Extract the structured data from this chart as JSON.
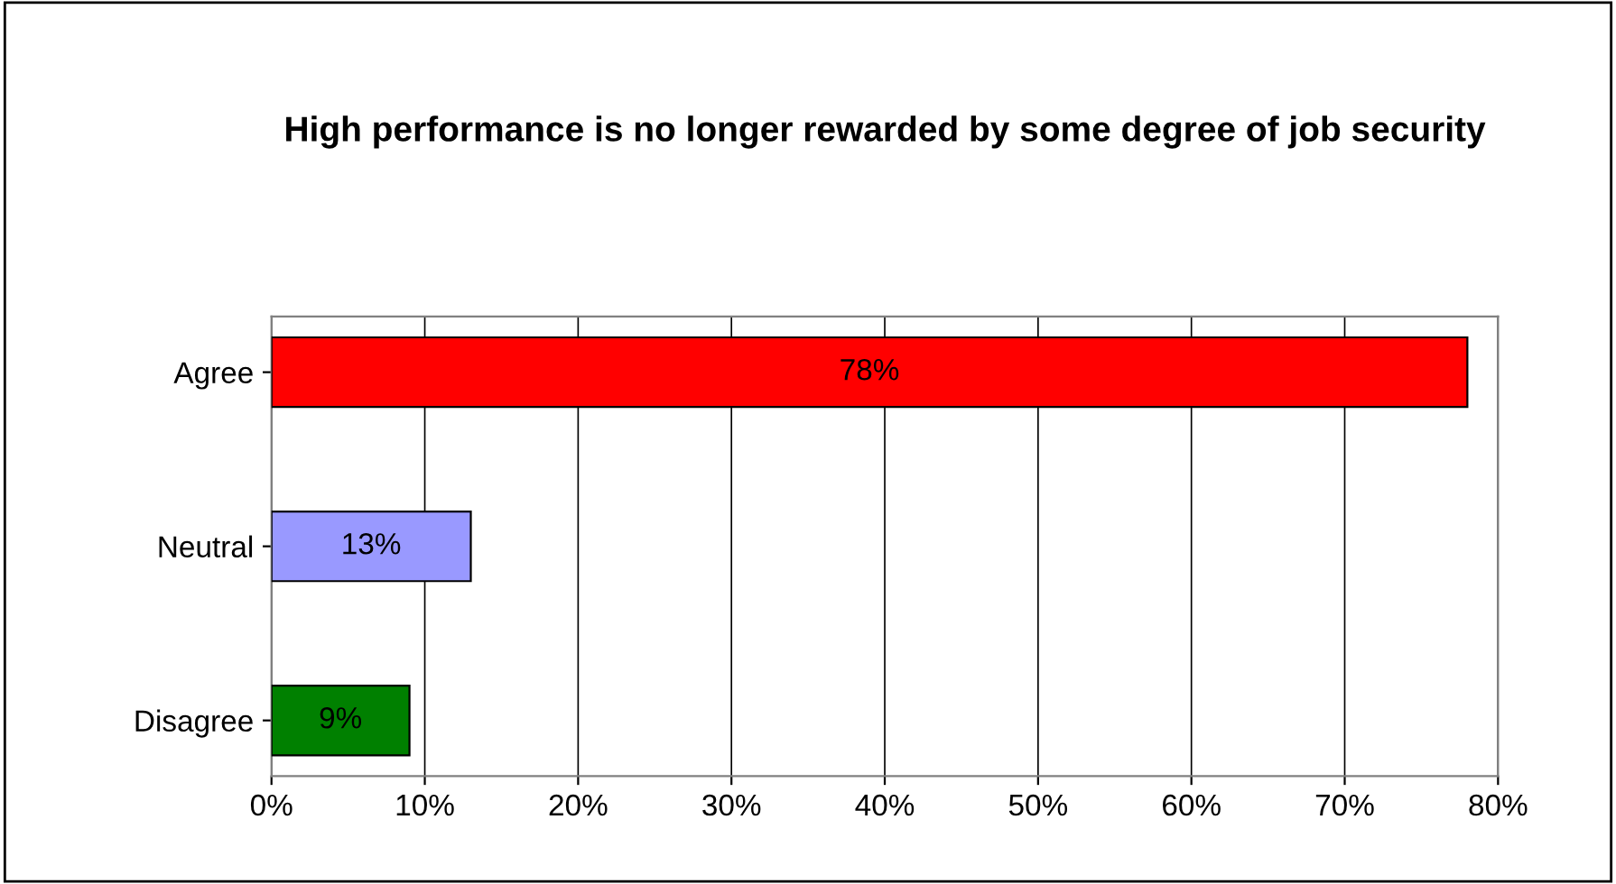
{
  "chart_data": {
    "type": "bar",
    "orientation": "horizontal",
    "title": "High performance is no longer rewarded by some degree of job security",
    "categories": [
      "Agree",
      "Neutral",
      "Disagree"
    ],
    "values": [
      78,
      13,
      9
    ],
    "colors": [
      "#ff0000",
      "#9999ff",
      "#008000"
    ],
    "value_labels": [
      "78%",
      "13%",
      "9%"
    ],
    "xlim": [
      0,
      80
    ],
    "xticks": [
      {
        "value": 0,
        "label": "0%"
      },
      {
        "value": 10,
        "label": "10%"
      },
      {
        "value": 20,
        "label": "20%"
      },
      {
        "value": 30,
        "label": "30%"
      },
      {
        "value": 40,
        "label": "40%"
      },
      {
        "value": 50,
        "label": "50%"
      },
      {
        "value": 60,
        "label": "60%"
      },
      {
        "value": 70,
        "label": "70%"
      },
      {
        "value": 80,
        "label": "80%"
      }
    ],
    "grid": "x",
    "legend": false
  }
}
